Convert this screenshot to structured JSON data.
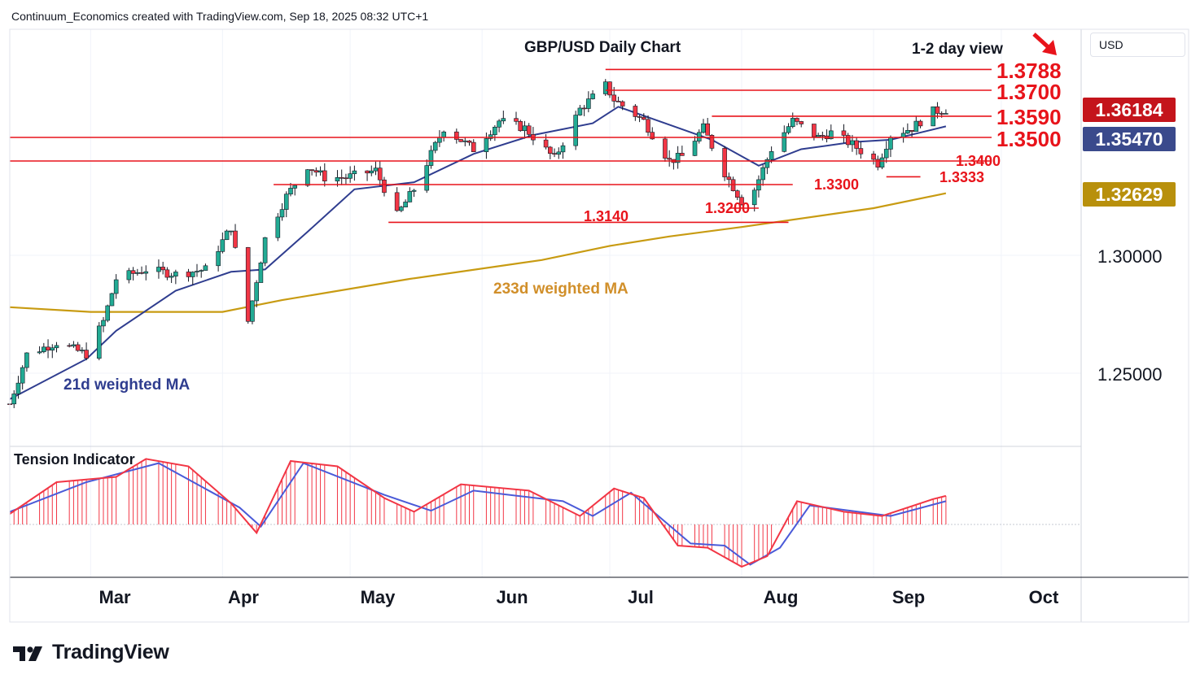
{
  "header": {
    "text": "Continuum_Economics created with TradingView.com, Sep 18, 2025 08:32 UTC+1"
  },
  "brand": {
    "name": "TradingView"
  },
  "chart_title": "GBP/USD Daily Chart",
  "view_note": "1-2 day view",
  "currency": "USD",
  "price_tags": {
    "last": {
      "value": "1.36184",
      "color": "#c4141b"
    },
    "ma21": {
      "value": "1.35470",
      "color": "#3a4a8c"
    },
    "ma233": {
      "value": "1.32629",
      "color": "#b8900c"
    }
  },
  "colors": {
    "levels": "#e8141b",
    "up": "#22ab94",
    "down": "#f23645",
    "ma21": "#2f3d8f",
    "ma233": "#c89b12",
    "tension_fast": "#f23645",
    "tension_slow": "#4a5ad8"
  },
  "main_panel": {
    "price_axis": [
      "1.30000",
      "1.25000"
    ]
  },
  "months": [
    "Mar",
    "Apr",
    "May",
    "Jun",
    "Jul",
    "Aug",
    "Sep",
    "Oct"
  ],
  "tension_title": "Tension Indicator",
  "ma_labels": {
    "ma21": "21d weighted MA",
    "ma233": "233d weighted MA"
  },
  "levels": [
    {
      "label": "1.3788",
      "value": 1.3788
    },
    {
      "label": "1.3700",
      "value": 1.37
    },
    {
      "label": "1.3590",
      "value": 1.359
    },
    {
      "label": "1.3500",
      "value": 1.35
    },
    {
      "label": "1.3400",
      "value": 1.34
    },
    {
      "label": "1.3333",
      "value": 1.3333
    },
    {
      "label": "1.3300",
      "value": 1.33
    },
    {
      "label": "1.3200",
      "value": 1.32
    },
    {
      "label": "1.3140",
      "value": 1.314
    }
  ],
  "chart_data": {
    "type": "candlestick",
    "title": "GBP/USD Daily Chart",
    "date_range": [
      "2025-02-10",
      "2025-09-18"
    ],
    "y_ticks": [
      1.25,
      1.3
    ],
    "close_points": [
      [
        "2025-02-10",
        1.237
      ],
      [
        "2025-02-14",
        1.258
      ],
      [
        "2025-02-21",
        1.263
      ],
      [
        "2025-02-28",
        1.258
      ],
      [
        "2025-03-04",
        1.272
      ],
      [
        "2025-03-07",
        1.29
      ],
      [
        "2025-03-14",
        1.294
      ],
      [
        "2025-03-21",
        1.292
      ],
      [
        "2025-03-28",
        1.294
      ],
      [
        "2025-04-03",
        1.312
      ],
      [
        "2025-04-07",
        1.272
      ],
      [
        "2025-04-11",
        1.307
      ],
      [
        "2025-04-16",
        1.325
      ],
      [
        "2025-04-21",
        1.338
      ],
      [
        "2025-04-25",
        1.333
      ],
      [
        "2025-04-30",
        1.333
      ],
      [
        "2025-05-07",
        1.336
      ],
      [
        "2025-05-12",
        1.317
      ],
      [
        "2025-05-16",
        1.328
      ],
      [
        "2025-05-23",
        1.354
      ],
      [
        "2025-05-30",
        1.345
      ],
      [
        "2025-06-05",
        1.357
      ],
      [
        "2025-06-11",
        1.354
      ],
      [
        "2025-06-18",
        1.341
      ],
      [
        "2025-06-24",
        1.362
      ],
      [
        "2025-06-30",
        1.372
      ],
      [
        "2025-07-02",
        1.366
      ],
      [
        "2025-07-09",
        1.357
      ],
      [
        "2025-07-15",
        1.34
      ],
      [
        "2025-07-18",
        1.342
      ],
      [
        "2025-07-23",
        1.354
      ],
      [
        "2025-07-28",
        1.335
      ],
      [
        "2025-08-01",
        1.323
      ],
      [
        "2025-08-04",
        1.328
      ],
      [
        "2025-08-08",
        1.345
      ],
      [
        "2025-08-13",
        1.357
      ],
      [
        "2025-08-19",
        1.35
      ],
      [
        "2025-08-22",
        1.352
      ],
      [
        "2025-08-27",
        1.347
      ],
      [
        "2025-09-02",
        1.339
      ],
      [
        "2025-09-05",
        1.351
      ],
      [
        "2025-09-10",
        1.354
      ],
      [
        "2025-09-15",
        1.361
      ],
      [
        "2025-09-18",
        1.3618
      ]
    ],
    "ma21_points": [
      [
        "2025-02-10",
        1.239
      ],
      [
        "2025-02-28",
        1.256
      ],
      [
        "2025-03-07",
        1.268
      ],
      [
        "2025-03-21",
        1.285
      ],
      [
        "2025-04-03",
        1.293
      ],
      [
        "2025-04-11",
        1.294
      ],
      [
        "2025-04-21",
        1.31
      ],
      [
        "2025-05-02",
        1.328
      ],
      [
        "2025-05-16",
        1.331
      ],
      [
        "2025-05-30",
        1.343
      ],
      [
        "2025-06-13",
        1.351
      ],
      [
        "2025-06-27",
        1.356
      ],
      [
        "2025-07-03",
        1.363
      ],
      [
        "2025-07-14",
        1.356
      ],
      [
        "2025-07-25",
        1.349
      ],
      [
        "2025-08-05",
        1.338
      ],
      [
        "2025-08-15",
        1.345
      ],
      [
        "2025-08-27",
        1.348
      ],
      [
        "2025-09-05",
        1.349
      ],
      [
        "2025-09-18",
        1.3547
      ]
    ],
    "ma233_points": [
      [
        "2025-02-10",
        1.278
      ],
      [
        "2025-03-01",
        1.276
      ],
      [
        "2025-04-01",
        1.276
      ],
      [
        "2025-04-15",
        1.281
      ],
      [
        "2025-05-15",
        1.29
      ],
      [
        "2025-06-15",
        1.298
      ],
      [
        "2025-07-01",
        1.304
      ],
      [
        "2025-07-15",
        1.308
      ],
      [
        "2025-08-01",
        1.312
      ],
      [
        "2025-09-01",
        1.32
      ],
      [
        "2025-09-18",
        1.3263
      ]
    ],
    "tension_indicator": {
      "fast": [
        [
          "2025-02-10",
          0.1
        ],
        [
          "2025-02-21",
          0.4
        ],
        [
          "2025-03-07",
          0.45
        ],
        [
          "2025-03-14",
          0.62
        ],
        [
          "2025-03-24",
          0.55
        ],
        [
          "2025-04-03",
          0.2
        ],
        [
          "2025-04-09",
          -0.08
        ],
        [
          "2025-04-17",
          0.6
        ],
        [
          "2025-04-28",
          0.55
        ],
        [
          "2025-05-09",
          0.25
        ],
        [
          "2025-05-16",
          0.12
        ],
        [
          "2025-05-27",
          0.38
        ],
        [
          "2025-06-12",
          0.32
        ],
        [
          "2025-06-24",
          0.08
        ],
        [
          "2025-07-02",
          0.34
        ],
        [
          "2025-07-09",
          0.25
        ],
        [
          "2025-07-17",
          -0.2
        ],
        [
          "2025-07-24",
          -0.22
        ],
        [
          "2025-08-01",
          -0.4
        ],
        [
          "2025-08-07",
          -0.3
        ],
        [
          "2025-08-14",
          0.22
        ],
        [
          "2025-08-25",
          0.12
        ],
        [
          "2025-09-03",
          0.08
        ],
        [
          "2025-09-15",
          0.24
        ],
        [
          "2025-09-18",
          0.27
        ]
      ],
      "slow": [
        [
          "2025-02-10",
          0.12
        ],
        [
          "2025-02-28",
          0.4
        ],
        [
          "2025-03-17",
          0.58
        ],
        [
          "2025-04-05",
          0.16
        ],
        [
          "2025-04-10",
          -0.02
        ],
        [
          "2025-04-20",
          0.58
        ],
        [
          "2025-05-09",
          0.28
        ],
        [
          "2025-05-20",
          0.13
        ],
        [
          "2025-05-30",
          0.32
        ],
        [
          "2025-06-20",
          0.22
        ],
        [
          "2025-06-27",
          0.08
        ],
        [
          "2025-07-06",
          0.3
        ],
        [
          "2025-07-20",
          -0.18
        ],
        [
          "2025-07-28",
          -0.2
        ],
        [
          "2025-08-03",
          -0.38
        ],
        [
          "2025-08-10",
          -0.22
        ],
        [
          "2025-08-17",
          0.18
        ],
        [
          "2025-09-05",
          0.08
        ],
        [
          "2025-09-18",
          0.22
        ]
      ]
    }
  }
}
